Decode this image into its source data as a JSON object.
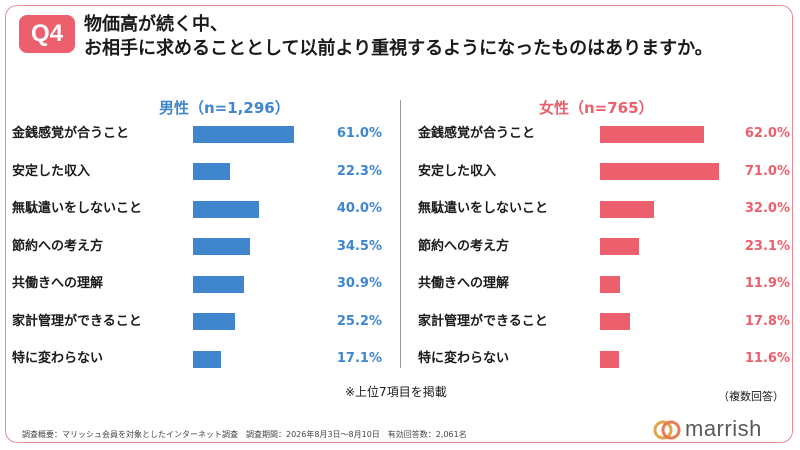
{
  "question": {
    "badge": "Q4",
    "title_line1": "物価高が続く中、",
    "title_line2": "お相手に求めることとして以前より重視するようになったものはありますか。"
  },
  "colors": {
    "male": "#3f86cf",
    "female": "#ec5f6c"
  },
  "chart_data": [
    {
      "type": "bar",
      "orientation": "horizontal",
      "title": "男性（n=1,296）",
      "categories": [
        "金銭感覚が合うこと",
        "安定した収入",
        "無駄遣いをしないこと",
        "節約への考え方",
        "共働きへの理解",
        "家計管理ができること",
        "特に変わらない"
      ],
      "values": [
        61.0,
        22.3,
        40.0,
        34.5,
        30.9,
        25.2,
        17.1
      ],
      "value_labels": [
        "61.0%",
        "22.3%",
        "40.0%",
        "34.5%",
        "30.9%",
        "25.2%",
        "17.1%"
      ],
      "unit": "%",
      "color": "#3f86cf"
    },
    {
      "type": "bar",
      "orientation": "horizontal",
      "title": "女性（n=765）",
      "categories": [
        "金銭感覚が合うこと",
        "安定した収入",
        "無駄遣いをしないこと",
        "節約への考え方",
        "共働きへの理解",
        "家計管理ができること",
        "特に変わらない"
      ],
      "values": [
        62.0,
        71.0,
        32.0,
        23.1,
        11.9,
        17.8,
        11.6
      ],
      "value_labels": [
        "62.0%",
        "71.0%",
        "32.0%",
        "23.1%",
        "11.9%",
        "17.8%",
        "11.6%"
      ],
      "unit": "%",
      "color": "#ec5f6c"
    }
  ],
  "note": "※上位7項目を掲載",
  "multi_answer": "（複数回答）",
  "footer": "調査概要：マリッシュ会員を対象としたインターネット調査　調査期間：2026年8月3日～8月10日　有効回答数：2,061名",
  "logo_text": "marrish"
}
